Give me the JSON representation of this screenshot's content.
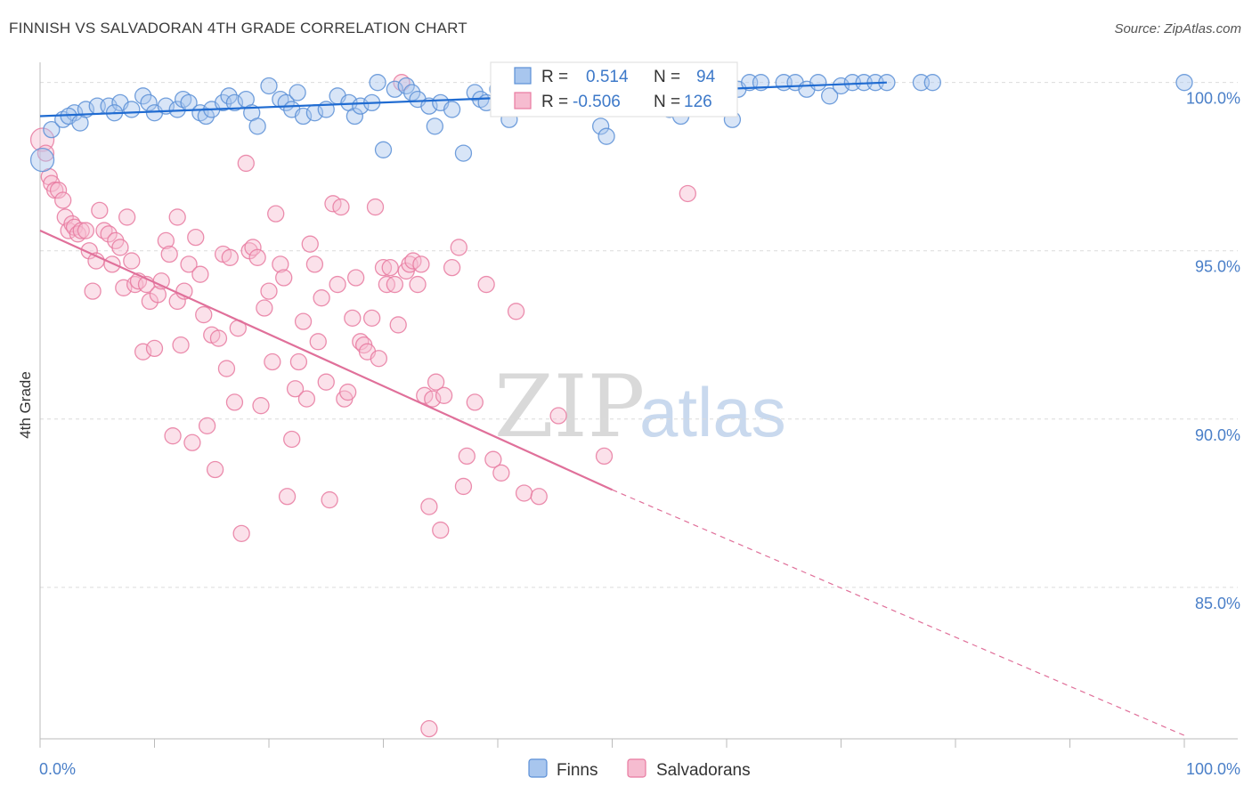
{
  "title": "FINNISH VS SALVADORAN 4TH GRADE CORRELATION CHART",
  "source": "Source: ZipAtlas.com",
  "watermark": {
    "zip": "ZIP",
    "atlas": "atlas"
  },
  "colors": {
    "finns": "#5b8fd6",
    "finns_fill": "#a8c6ee",
    "salvadorans": "#e87aa0",
    "salvadorans_fill": "#f6bcd0",
    "trend_finns": "#1f6bd1",
    "trend_salv": "#e0709a",
    "tick": "#4a7fc8"
  },
  "chart_data": {
    "type": "scatter",
    "xlabel": "",
    "ylabel": "4th Grade",
    "xlim": [
      0,
      100
    ],
    "ylim": [
      80.5,
      100.6
    ],
    "x_tick_labels": {
      "min": "0.0%",
      "max": "100.0%"
    },
    "y_ticks": [
      {
        "value": 100,
        "label": "100.0%"
      },
      {
        "value": 95,
        "label": "95.0%"
      },
      {
        "value": 90,
        "label": "90.0%"
      },
      {
        "value": 85,
        "label": "85.0%"
      }
    ],
    "grid": true,
    "legend_position": "bottom",
    "stats": [
      {
        "series": "Finns",
        "r_label": "R =",
        "r": "0.514",
        "n_label": "N =",
        "n": "94"
      },
      {
        "series": "Salvadorans",
        "r_label": "R =",
        "r": "-0.506",
        "n_label": "N =",
        "n": "126"
      }
    ],
    "series": [
      {
        "name": "Finns",
        "trend": {
          "x0": 0,
          "y0": 99.0,
          "x1": 74,
          "y1": 100.0
        },
        "points": [
          [
            0.2,
            97.7
          ],
          [
            1,
            98.6
          ],
          [
            2,
            98.9
          ],
          [
            3,
            99.1
          ],
          [
            2.5,
            99.0
          ],
          [
            3.5,
            98.8
          ],
          [
            4,
            99.2
          ],
          [
            5,
            99.3
          ],
          [
            6,
            99.3
          ],
          [
            7,
            99.4
          ],
          [
            6.5,
            99.1
          ],
          [
            8,
            99.2
          ],
          [
            9,
            99.6
          ],
          [
            9.5,
            99.4
          ],
          [
            10,
            99.1
          ],
          [
            11,
            99.3
          ],
          [
            12,
            99.2
          ],
          [
            12.5,
            99.5
          ],
          [
            13,
            99.4
          ],
          [
            14,
            99.1
          ],
          [
            14.5,
            99.0
          ],
          [
            15,
            99.2
          ],
          [
            16,
            99.4
          ],
          [
            16.5,
            99.6
          ],
          [
            17,
            99.4
          ],
          [
            18,
            99.5
          ],
          [
            18.5,
            99.1
          ],
          [
            19,
            98.7
          ],
          [
            20,
            99.9
          ],
          [
            21,
            99.5
          ],
          [
            21.5,
            99.4
          ],
          [
            22,
            99.2
          ],
          [
            22.5,
            99.7
          ],
          [
            23,
            99.0
          ],
          [
            24,
            99.1
          ],
          [
            25,
            99.2
          ],
          [
            26,
            99.6
          ],
          [
            27,
            99.4
          ],
          [
            27.5,
            99.0
          ],
          [
            28,
            99.3
          ],
          [
            29,
            99.4
          ],
          [
            29.5,
            100.0
          ],
          [
            30,
            98.0
          ],
          [
            31,
            99.8
          ],
          [
            32,
            99.9
          ],
          [
            32.5,
            99.7
          ],
          [
            33,
            99.5
          ],
          [
            34,
            99.3
          ],
          [
            34.5,
            98.7
          ],
          [
            35,
            99.4
          ],
          [
            36,
            99.2
          ],
          [
            37,
            97.9
          ],
          [
            38,
            99.7
          ],
          [
            38.5,
            99.5
          ],
          [
            39,
            99.4
          ],
          [
            40,
            99.8
          ],
          [
            41,
            98.9
          ],
          [
            42,
            99.3
          ],
          [
            43,
            99.6
          ],
          [
            43.5,
            99.9
          ],
          [
            44,
            100.0
          ],
          [
            45,
            99.8
          ],
          [
            46,
            99.5
          ],
          [
            47,
            99.9
          ],
          [
            48,
            99.4
          ],
          [
            48.5,
            100.0
          ],
          [
            49,
            98.7
          ],
          [
            49.5,
            98.4
          ],
          [
            51,
            100.0
          ],
          [
            52,
            100.0
          ],
          [
            53,
            99.7
          ],
          [
            54,
            99.5
          ],
          [
            55,
            99.2
          ],
          [
            56,
            99.0
          ],
          [
            57,
            100.0
          ],
          [
            58,
            99.7
          ],
          [
            60,
            100.0
          ],
          [
            61,
            99.8
          ],
          [
            62,
            100.0
          ],
          [
            63,
            100.0
          ],
          [
            65,
            100.0
          ],
          [
            66,
            100.0
          ],
          [
            67,
            99.8
          ],
          [
            68,
            100.0
          ],
          [
            69,
            99.6
          ],
          [
            70,
            99.9
          ],
          [
            71,
            100.0
          ],
          [
            72,
            100.0
          ],
          [
            73,
            100.0
          ],
          [
            74,
            100.0
          ],
          [
            77,
            100.0
          ],
          [
            78,
            100.0
          ],
          [
            100,
            100.0
          ],
          [
            60.5,
            98.9
          ]
        ]
      },
      {
        "name": "Salvadorans",
        "trend": {
          "x0": 0,
          "y0": 95.6,
          "x1": 50,
          "y1": 87.9,
          "dash_x1": 100,
          "dash_y1": 80.6
        },
        "points": [
          [
            0.2,
            98.3
          ],
          [
            0.5,
            97.9
          ],
          [
            0.8,
            97.2
          ],
          [
            1,
            97.0
          ],
          [
            1.3,
            96.8
          ],
          [
            1.6,
            96.8
          ],
          [
            2,
            96.5
          ],
          [
            2.2,
            96.0
          ],
          [
            2.5,
            95.6
          ],
          [
            2.8,
            95.8
          ],
          [
            3,
            95.7
          ],
          [
            3.3,
            95.5
          ],
          [
            3.6,
            95.6
          ],
          [
            4,
            95.6
          ],
          [
            4.3,
            95.0
          ],
          [
            4.6,
            93.8
          ],
          [
            4.9,
            94.7
          ],
          [
            5.2,
            96.2
          ],
          [
            5.6,
            95.6
          ],
          [
            6,
            95.5
          ],
          [
            6.3,
            94.6
          ],
          [
            6.6,
            95.3
          ],
          [
            7,
            95.1
          ],
          [
            7.3,
            93.9
          ],
          [
            7.6,
            96.0
          ],
          [
            8,
            94.7
          ],
          [
            8.3,
            94.0
          ],
          [
            8.6,
            94.1
          ],
          [
            9,
            92.0
          ],
          [
            9.3,
            94.0
          ],
          [
            9.6,
            93.5
          ],
          [
            10,
            92.1
          ],
          [
            10.3,
            93.7
          ],
          [
            10.6,
            94.1
          ],
          [
            11,
            95.3
          ],
          [
            11.3,
            94.9
          ],
          [
            11.6,
            89.5
          ],
          [
            12,
            93.5
          ],
          [
            12.3,
            92.2
          ],
          [
            12.6,
            93.8
          ],
          [
            13,
            94.6
          ],
          [
            13.3,
            89.3
          ],
          [
            13.6,
            95.4
          ],
          [
            14,
            94.3
          ],
          [
            14.3,
            93.1
          ],
          [
            14.6,
            89.8
          ],
          [
            15,
            92.5
          ],
          [
            15.3,
            88.5
          ],
          [
            15.6,
            92.4
          ],
          [
            16,
            94.9
          ],
          [
            16.3,
            91.5
          ],
          [
            16.6,
            94.8
          ],
          [
            17,
            90.5
          ],
          [
            17.3,
            92.7
          ],
          [
            17.6,
            86.6
          ],
          [
            18,
            97.6
          ],
          [
            18.3,
            95.0
          ],
          [
            18.6,
            95.1
          ],
          [
            19,
            94.8
          ],
          [
            19.3,
            90.4
          ],
          [
            19.6,
            93.3
          ],
          [
            20,
            93.8
          ],
          [
            20.3,
            91.7
          ],
          [
            20.6,
            96.1
          ],
          [
            21,
            94.6
          ],
          [
            21.3,
            94.2
          ],
          [
            21.6,
            87.7
          ],
          [
            22,
            89.4
          ],
          [
            22.3,
            90.9
          ],
          [
            22.6,
            91.7
          ],
          [
            23,
            92.9
          ],
          [
            23.3,
            90.6
          ],
          [
            23.6,
            95.2
          ],
          [
            24,
            94.6
          ],
          [
            24.3,
            92.3
          ],
          [
            24.6,
            93.6
          ],
          [
            25,
            91.1
          ],
          [
            25.3,
            87.6
          ],
          [
            25.6,
            96.4
          ],
          [
            26,
            94.0
          ],
          [
            26.3,
            96.3
          ],
          [
            26.6,
            90.6
          ],
          [
            26.9,
            90.8
          ],
          [
            27.3,
            93.0
          ],
          [
            27.6,
            94.2
          ],
          [
            28,
            92.3
          ],
          [
            28.3,
            92.2
          ],
          [
            28.6,
            92.0
          ],
          [
            29,
            93.0
          ],
          [
            29.3,
            96.3
          ],
          [
            29.6,
            91.8
          ],
          [
            30,
            94.5
          ],
          [
            30.3,
            94.0
          ],
          [
            30.6,
            94.5
          ],
          [
            31,
            94.0
          ],
          [
            31.3,
            92.8
          ],
          [
            31.6,
            100.0
          ],
          [
            32,
            94.4
          ],
          [
            32.3,
            94.6
          ],
          [
            32.6,
            94.7
          ],
          [
            33,
            94.0
          ],
          [
            33.3,
            94.6
          ],
          [
            33.6,
            90.7
          ],
          [
            34,
            87.4
          ],
          [
            34.3,
            90.6
          ],
          [
            34.6,
            91.1
          ],
          [
            35,
            86.7
          ],
          [
            35.3,
            90.7
          ],
          [
            36,
            94.5
          ],
          [
            36.6,
            95.1
          ],
          [
            37,
            88.0
          ],
          [
            37.3,
            88.9
          ],
          [
            38,
            90.5
          ],
          [
            39,
            94.0
          ],
          [
            39.6,
            88.8
          ],
          [
            40.3,
            88.4
          ],
          [
            41.6,
            93.2
          ],
          [
            42.3,
            87.8
          ],
          [
            34.0,
            80.8
          ],
          [
            43.6,
            87.7
          ],
          [
            45.3,
            90.1
          ],
          [
            49.3,
            88.9
          ],
          [
            56.6,
            96.7
          ],
          [
            12.0,
            96.0
          ]
        ]
      }
    ]
  },
  "legend": [
    {
      "name": "Finns"
    },
    {
      "name": "Salvadorans"
    }
  ]
}
